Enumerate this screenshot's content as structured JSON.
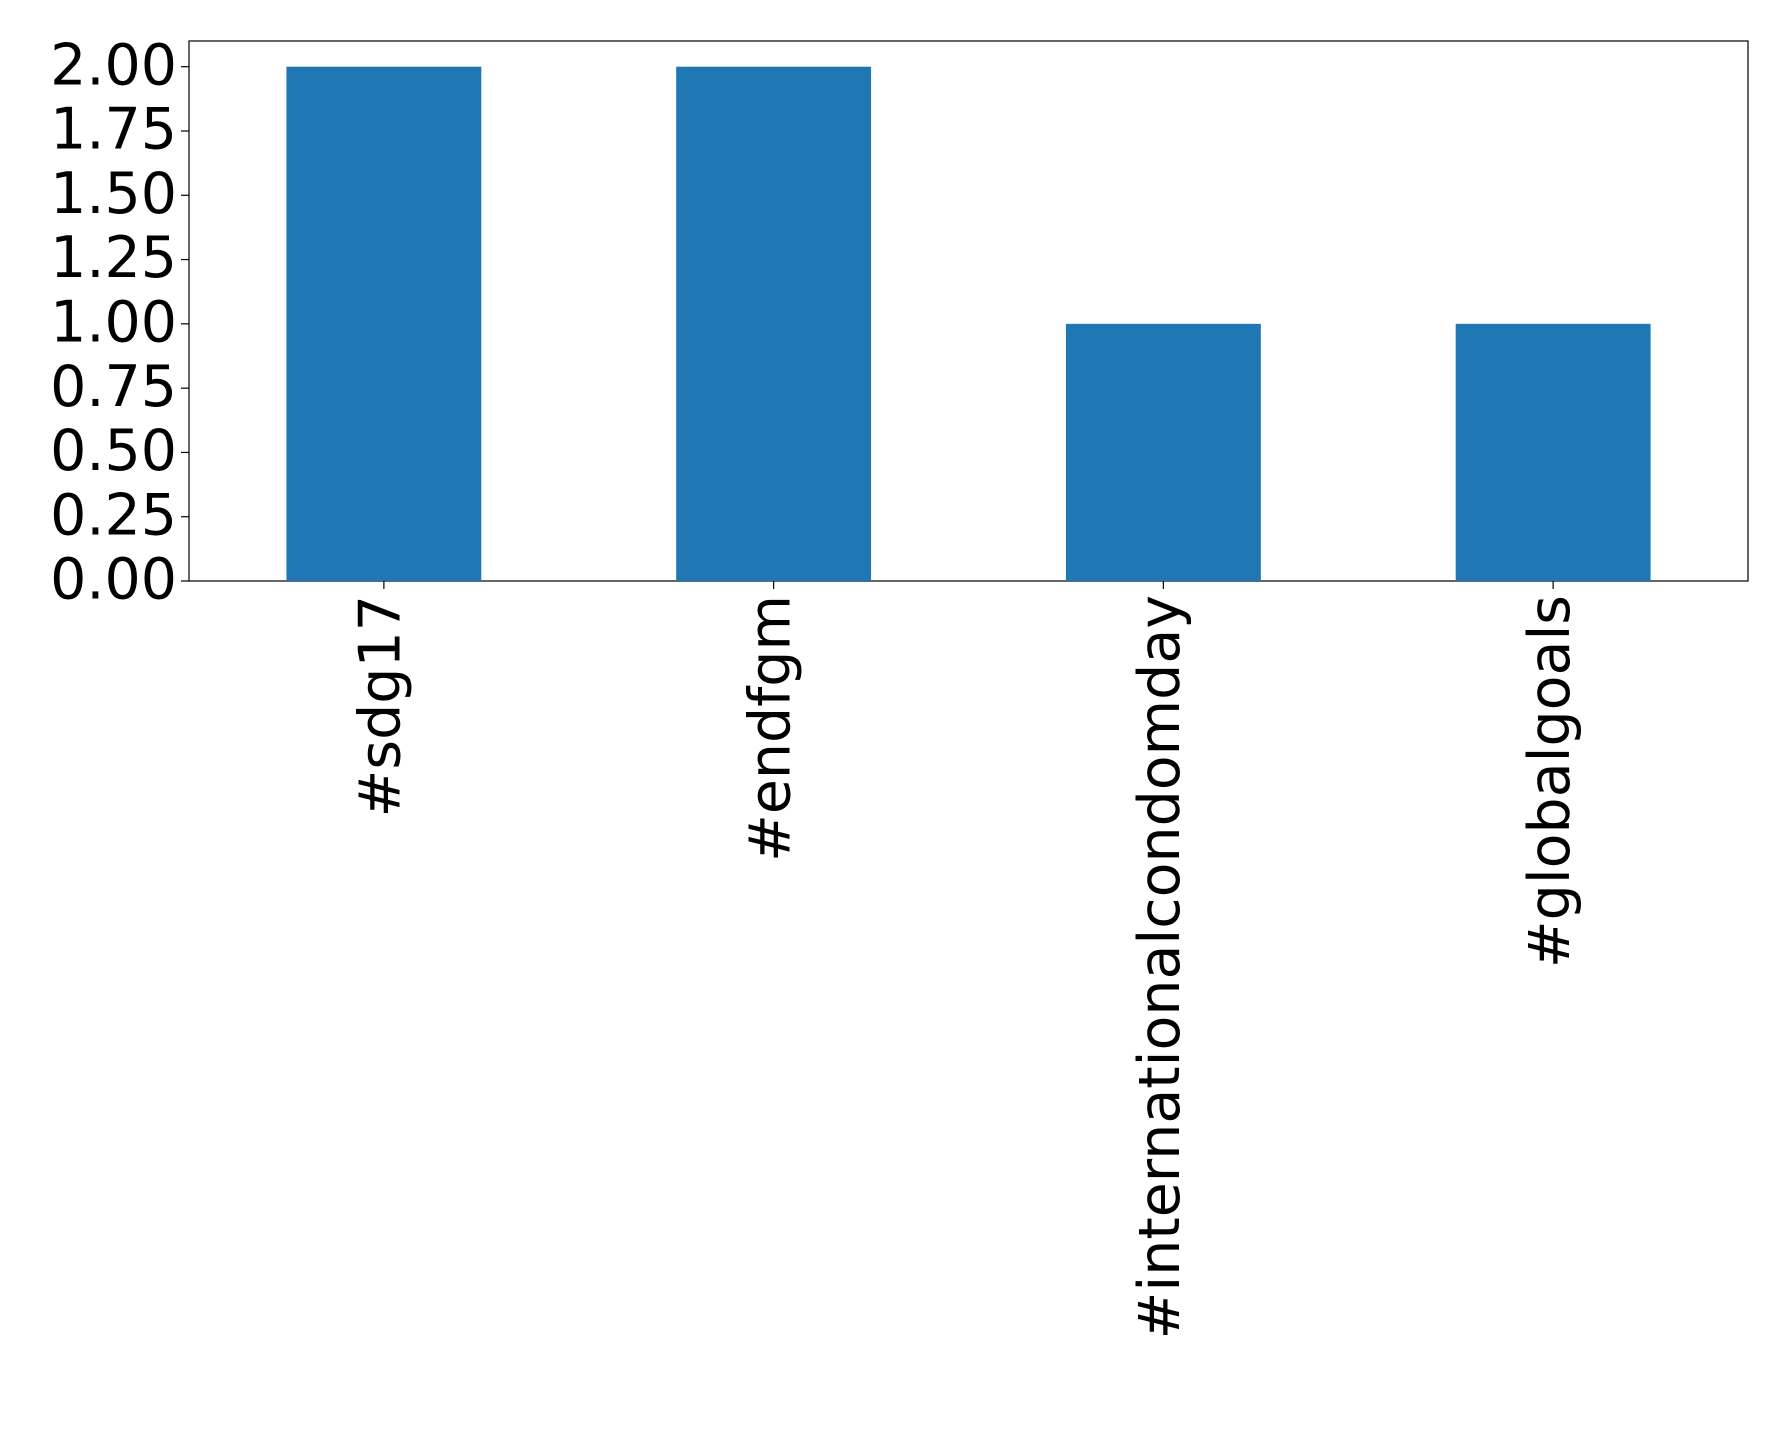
{
  "chart_data": {
    "type": "bar",
    "categories": [
      "#sdg17",
      "#endfgm",
      "#internationalcondomday",
      "#globalgoals"
    ],
    "values": [
      2,
      2,
      1,
      1
    ],
    "color": "#1f77b4",
    "ylim": [
      0,
      2.1
    ],
    "yticks": [
      {
        "value": 0,
        "label": "0.00"
      },
      {
        "value": 0.25,
        "label": "0.25"
      },
      {
        "value": 0.5,
        "label": "0.50"
      },
      {
        "value": 0.75,
        "label": "0.75"
      },
      {
        "value": 1,
        "label": "1.00"
      },
      {
        "value": 1.25,
        "label": "1.25"
      },
      {
        "value": 1.5,
        "label": "1.50"
      },
      {
        "value": 1.75,
        "label": "1.75"
      },
      {
        "value": 2,
        "label": "2.00"
      }
    ],
    "grid": false
  }
}
